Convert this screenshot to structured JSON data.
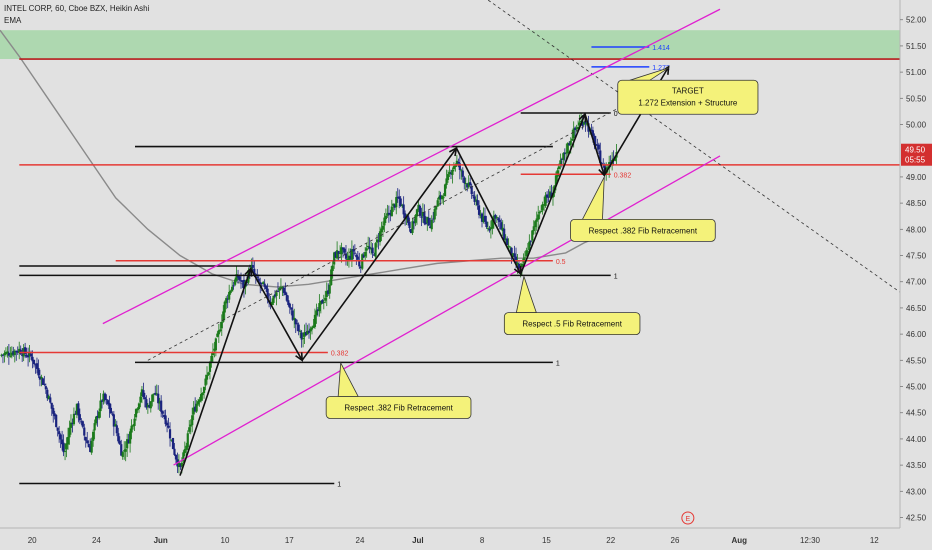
{
  "header": {
    "symbol_line": "INTEL CORP, 60, Cboe BZX, Heikin Ashi",
    "indicator": "EMA"
  },
  "chart_data": {
    "type": "candlestick",
    "title": "INTEL CORP, 60, Cboe BZX, Heikin Ashi",
    "ylim": [
      42.3,
      52.3
    ],
    "y_ticks": [
      "52.00",
      "51.50",
      "51.00",
      "50.50",
      "50.00",
      "49.00",
      "48.50",
      "48.00",
      "47.50",
      "47.00",
      "46.50",
      "46.00",
      "45.50",
      "45.00",
      "44.50",
      "44.00",
      "43.50",
      "43.00",
      "42.50"
    ],
    "y_tick_values": [
      52.0,
      51.5,
      51.0,
      50.5,
      50.0,
      49.0,
      48.5,
      48.0,
      47.5,
      47.0,
      46.5,
      46.0,
      45.5,
      45.0,
      44.5,
      44.0,
      43.5,
      43.0,
      42.5
    ],
    "price_badge": {
      "value": 49.5,
      "label": "49.50",
      "time": "05:55",
      "color": "#d32f2f"
    },
    "x_ticks": [
      "20",
      "24",
      "Jun",
      "10",
      "17",
      "24",
      "Jul",
      "8",
      "15",
      "22",
      "26",
      "Aug",
      "12:30",
      "12"
    ],
    "x_tick_index": [
      2,
      12,
      22,
      32,
      42,
      53,
      62,
      72,
      82,
      92,
      102,
      112,
      123,
      133
    ],
    "x_range_index": [
      -3,
      137
    ],
    "resistance_zone": {
      "low": 51.25,
      "high": 51.8,
      "color": "#a5d6a7"
    },
    "horizontal_lines": [
      {
        "y": 51.25,
        "color": "#b71c1c",
        "from": 0,
        "to": 137
      },
      {
        "y": 49.23,
        "color": "#e53935",
        "from": 0,
        "to": 137
      }
    ],
    "fib_levels": [
      {
        "label": "1.414",
        "y": 51.48,
        "from": 89,
        "to": 98,
        "color": "#1e40ff"
      },
      {
        "label": "1.272",
        "y": 51.1,
        "from": 89,
        "to": 98,
        "color": "#1e40ff"
      },
      {
        "label": "0",
        "y": 50.22,
        "from": 78,
        "to": 92,
        "color": "#111111"
      },
      {
        "label": "0.382",
        "y": 49.05,
        "from": 78,
        "to": 92,
        "color": "#e53935"
      },
      {
        "label": "0.5",
        "y": 47.4,
        "from": 15,
        "to": 83,
        "color": "#e53935"
      },
      {
        "label": "1",
        "y": 47.12,
        "from": 0,
        "to": 92,
        "color": "#111111"
      },
      {
        "label": "0.382",
        "y": 45.65,
        "from": 0,
        "to": 48,
        "color": "#e53935"
      },
      {
        "label": "1",
        "y": 45.46,
        "from": 18,
        "to": 83,
        "color": "#111111"
      },
      {
        "label": "1",
        "y": 43.15,
        "from": 0,
        "to": 49,
        "color": "#111111"
      }
    ],
    "structure_lines": [
      {
        "y": 49.58,
        "from": 18,
        "to": 83,
        "color": "#111111"
      },
      {
        "y": 47.3,
        "from": 0,
        "to": 36,
        "color": "#111111"
      }
    ],
    "channel": [
      {
        "name": "upper",
        "x1": 13,
        "y1": 46.2,
        "x2": 109,
        "y2": 52.2,
        "color": "#e020d0"
      },
      {
        "name": "lower",
        "x1": 24,
        "y1": 43.5,
        "x2": 109,
        "y2": 49.4,
        "color": "#e020d0"
      }
    ],
    "zigzag": [
      {
        "x": 25,
        "y": 43.3
      },
      {
        "x": 36,
        "y": 47.25
      },
      {
        "x": 44,
        "y": 45.5
      },
      {
        "x": 68,
        "y": 49.55
      },
      {
        "x": 78,
        "y": 47.15
      },
      {
        "x": 88,
        "y": 50.2
      },
      {
        "x": 91,
        "y": 49.03
      },
      {
        "x": 101,
        "y": 51.1
      }
    ],
    "dashed_lines": [
      {
        "x1": 20,
        "y1": 45.5,
        "x2": 93,
        "y2": 50.3,
        "color": "#333333"
      },
      {
        "x1": 60,
        "y1": 53.5,
        "x2": 137,
        "y2": 46.8,
        "color": "#333333"
      }
    ],
    "ema_points": [
      [
        -3,
        51.8
      ],
      [
        0,
        51.3
      ],
      [
        5,
        50.4
      ],
      [
        10,
        49.5
      ],
      [
        15,
        48.6
      ],
      [
        20,
        48.0
      ],
      [
        25,
        47.5
      ],
      [
        30,
        47.15
      ],
      [
        35,
        46.95
      ],
      [
        40,
        46.9
      ],
      [
        45,
        46.95
      ],
      [
        50,
        47.05
      ],
      [
        55,
        47.15
      ],
      [
        60,
        47.25
      ],
      [
        65,
        47.35
      ],
      [
        70,
        47.4
      ],
      [
        75,
        47.45
      ],
      [
        80,
        47.45
      ],
      [
        85,
        47.55
      ],
      [
        88,
        47.75
      ],
      [
        92,
        47.95
      ]
    ],
    "price_path": [
      [
        -3,
        45.6
      ],
      [
        0,
        45.7
      ],
      [
        2,
        45.55
      ],
      [
        4,
        45.0
      ],
      [
        6,
        44.2
      ],
      [
        7,
        43.7
      ],
      [
        8,
        44.3
      ],
      [
        9,
        44.6
      ],
      [
        10,
        44.1
      ],
      [
        11,
        43.8
      ],
      [
        12,
        44.4
      ],
      [
        13,
        44.8
      ],
      [
        14,
        44.6
      ],
      [
        15,
        44.2
      ],
      [
        16,
        43.7
      ],
      [
        17,
        44.0
      ],
      [
        18,
        44.5
      ],
      [
        19,
        44.9
      ],
      [
        20,
        44.6
      ],
      [
        21,
        44.9
      ],
      [
        22,
        44.6
      ],
      [
        23,
        44.3
      ],
      [
        24,
        43.8
      ],
      [
        25,
        43.4
      ],
      [
        26,
        43.9
      ],
      [
        27,
        44.5
      ],
      [
        28,
        44.8
      ],
      [
        29,
        45.1
      ],
      [
        30,
        45.6
      ],
      [
        31,
        46.0
      ],
      [
        32,
        46.6
      ],
      [
        33,
        46.9
      ],
      [
        34,
        47.1
      ],
      [
        35,
        46.9
      ],
      [
        36,
        47.3
      ],
      [
        37,
        47.0
      ],
      [
        38,
        46.9
      ],
      [
        39,
        46.6
      ],
      [
        40,
        46.8
      ],
      [
        41,
        46.9
      ],
      [
        42,
        46.5
      ],
      [
        43,
        46.2
      ],
      [
        44,
        45.9
      ],
      [
        45,
        46.1
      ],
      [
        46,
        46.3
      ],
      [
        47,
        46.6
      ],
      [
        48,
        46.8
      ],
      [
        49,
        47.5
      ],
      [
        50,
        47.6
      ],
      [
        51,
        47.4
      ],
      [
        52,
        47.6
      ],
      [
        53,
        47.3
      ],
      [
        54,
        47.7
      ],
      [
        55,
        47.5
      ],
      [
        56,
        47.9
      ],
      [
        57,
        48.2
      ],
      [
        58,
        48.4
      ],
      [
        59,
        48.6
      ],
      [
        60,
        48.3
      ],
      [
        61,
        48.0
      ],
      [
        62,
        48.4
      ],
      [
        63,
        48.2
      ],
      [
        64,
        48.1
      ],
      [
        65,
        48.5
      ],
      [
        66,
        48.7
      ],
      [
        67,
        49.1
      ],
      [
        68,
        49.3
      ],
      [
        69,
        49.0
      ],
      [
        70,
        48.8
      ],
      [
        71,
        48.5
      ],
      [
        72,
        48.2
      ],
      [
        73,
        48.0
      ],
      [
        74,
        48.3
      ],
      [
        75,
        48.0
      ],
      [
        76,
        47.7
      ],
      [
        77,
        47.4
      ],
      [
        78,
        47.2
      ],
      [
        79,
        47.6
      ],
      [
        80,
        48.0
      ],
      [
        81,
        48.4
      ],
      [
        82,
        48.6
      ],
      [
        83,
        48.7
      ],
      [
        84,
        49.2
      ],
      [
        85,
        49.5
      ],
      [
        86,
        49.8
      ],
      [
        87,
        50.0
      ],
      [
        88,
        50.1
      ],
      [
        89,
        49.8
      ],
      [
        90,
        49.5
      ],
      [
        91,
        49.1
      ],
      [
        92,
        49.3
      ],
      [
        93,
        49.5
      ]
    ],
    "callouts": [
      {
        "lines": [
          "TARGET",
          "1.272 Extension + Structure"
        ],
        "box": {
          "x": 104,
          "y": 50.52
        },
        "pointer": {
          "x": 101,
          "y": 51.08
        }
      },
      {
        "lines": [
          "Respect .382 Fib Retracement"
        ],
        "box": {
          "x": 97,
          "y": 47.98
        },
        "pointer": {
          "x": 91,
          "y": 49.0
        }
      },
      {
        "lines": [
          "Respect .5 Fib Retracement"
        ],
        "box": {
          "x": 86,
          "y": 46.2
        },
        "pointer": {
          "x": 78.5,
          "y": 47.1
        }
      },
      {
        "lines": [
          "Respect .382 Fib Retracement"
        ],
        "box": {
          "x": 59,
          "y": 44.6
        },
        "pointer": {
          "x": 50,
          "y": 45.45
        }
      }
    ],
    "event_marker": {
      "label": "E",
      "x": 104
    }
  }
}
